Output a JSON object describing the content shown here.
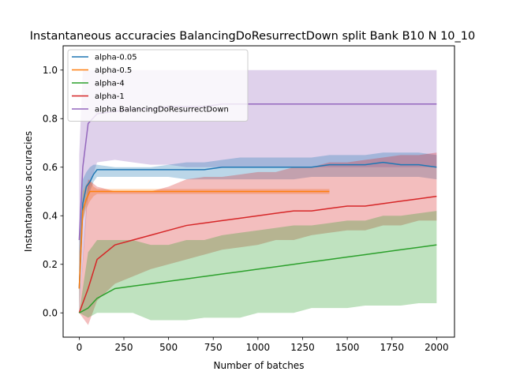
{
  "chart_data": {
    "type": "line",
    "title": "Instantaneous accuracies BalancingDoResurrectDown split Bank B10 N 10_10",
    "xlabel": "Number of batches",
    "ylabel": "Instantaneous accuracies",
    "xlim": [
      -90,
      2100
    ],
    "ylim": [
      -0.1,
      1.1
    ],
    "xticks": [
      0,
      250,
      500,
      750,
      1000,
      1250,
      1500,
      1750,
      2000
    ],
    "yticks": [
      0.0,
      0.2,
      0.4,
      0.6,
      0.8,
      1.0
    ],
    "grid": false,
    "legend_position": "top-left",
    "series": [
      {
        "name": "alpha BalancingDoResurrectDown",
        "color": "#9467bd",
        "x": [
          0,
          20,
          50,
          100,
          200,
          300,
          400,
          500,
          600,
          700,
          800,
          900,
          1000,
          1100,
          1200,
          1300,
          1400,
          1500,
          1600,
          1700,
          1800,
          1900,
          2000
        ],
        "values": [
          0.3,
          0.6,
          0.78,
          0.82,
          0.83,
          0.84,
          0.84,
          0.85,
          0.85,
          0.85,
          0.86,
          0.86,
          0.86,
          0.86,
          0.86,
          0.86,
          0.86,
          0.86,
          0.86,
          0.86,
          0.86,
          0.86,
          0.86
        ],
        "band_upper": [
          0.65,
          1.0,
          1.0,
          1.0,
          1.0,
          1.0,
          1.0,
          1.0,
          1.0,
          1.0,
          1.0,
          1.0,
          1.0,
          1.0,
          1.0,
          1.0,
          1.0,
          1.0,
          1.0,
          1.0,
          1.0,
          1.0,
          1.0
        ],
        "band_lower": [
          0.0,
          0.2,
          0.5,
          0.62,
          0.63,
          0.62,
          0.61,
          0.61,
          0.6,
          0.6,
          0.6,
          0.6,
          0.6,
          0.6,
          0.6,
          0.6,
          0.6,
          0.6,
          0.6,
          0.6,
          0.6,
          0.6,
          0.6
        ]
      },
      {
        "name": "alpha-0.05",
        "color": "#1f77b4",
        "x": [
          0,
          20,
          40,
          60,
          80,
          100,
          200,
          300,
          400,
          500,
          600,
          700,
          800,
          900,
          1000,
          1100,
          1200,
          1300,
          1400,
          1500,
          1600,
          1700,
          1800,
          1900,
          2000
        ],
        "values": [
          0.1,
          0.45,
          0.52,
          0.54,
          0.57,
          0.59,
          0.59,
          0.59,
          0.59,
          0.59,
          0.59,
          0.59,
          0.6,
          0.6,
          0.6,
          0.6,
          0.6,
          0.6,
          0.61,
          0.61,
          0.61,
          0.62,
          0.61,
          0.61,
          0.6
        ],
        "band_upper": [
          0.3,
          0.55,
          0.58,
          0.6,
          0.61,
          0.61,
          0.6,
          0.6,
          0.6,
          0.61,
          0.62,
          0.62,
          0.63,
          0.64,
          0.64,
          0.64,
          0.64,
          0.64,
          0.65,
          0.65,
          0.65,
          0.66,
          0.66,
          0.66,
          0.65
        ],
        "band_lower": [
          0.0,
          0.38,
          0.45,
          0.5,
          0.54,
          0.56,
          0.56,
          0.56,
          0.56,
          0.56,
          0.55,
          0.55,
          0.55,
          0.55,
          0.55,
          0.55,
          0.55,
          0.56,
          0.56,
          0.56,
          0.56,
          0.56,
          0.56,
          0.56,
          0.55
        ]
      },
      {
        "name": "alpha-0.5",
        "color": "#ff7f0e",
        "x": [
          0,
          20,
          40,
          60,
          80,
          100,
          200,
          300,
          400,
          500,
          600,
          700,
          800,
          900,
          1000,
          1100,
          1200,
          1300,
          1400
        ],
        "values": [
          0.1,
          0.42,
          0.47,
          0.5,
          0.5,
          0.5,
          0.5,
          0.5,
          0.5,
          0.5,
          0.5,
          0.5,
          0.5,
          0.5,
          0.5,
          0.5,
          0.5,
          0.5,
          0.5
        ],
        "band_upper": [
          0.25,
          0.5,
          0.53,
          0.55,
          0.52,
          0.51,
          0.51,
          0.51,
          0.51,
          0.51,
          0.51,
          0.51,
          0.51,
          0.51,
          0.51,
          0.51,
          0.51,
          0.51,
          0.51
        ],
        "band_lower": [
          0.0,
          0.38,
          0.43,
          0.46,
          0.48,
          0.49,
          0.49,
          0.49,
          0.49,
          0.49,
          0.49,
          0.49,
          0.49,
          0.49,
          0.49,
          0.49,
          0.49,
          0.49,
          0.49
        ]
      },
      {
        "name": "alpha-1",
        "color": "#d62728",
        "x": [
          0,
          50,
          100,
          200,
          300,
          400,
          500,
          600,
          700,
          800,
          900,
          1000,
          1100,
          1200,
          1300,
          1400,
          1500,
          1600,
          1700,
          1800,
          1900,
          2000
        ],
        "values": [
          0.0,
          0.1,
          0.22,
          0.28,
          0.3,
          0.32,
          0.34,
          0.36,
          0.37,
          0.38,
          0.39,
          0.4,
          0.41,
          0.42,
          0.42,
          0.43,
          0.44,
          0.44,
          0.45,
          0.46,
          0.47,
          0.48
        ],
        "band_upper": [
          0.0,
          0.55,
          0.52,
          0.5,
          0.5,
          0.5,
          0.52,
          0.55,
          0.56,
          0.56,
          0.57,
          0.58,
          0.58,
          0.6,
          0.6,
          0.62,
          0.62,
          0.63,
          0.64,
          0.65,
          0.65,
          0.66
        ],
        "band_lower": [
          0.0,
          -0.05,
          0.05,
          0.12,
          0.15,
          0.18,
          0.2,
          0.22,
          0.24,
          0.26,
          0.27,
          0.28,
          0.3,
          0.3,
          0.32,
          0.33,
          0.34,
          0.34,
          0.36,
          0.36,
          0.38,
          0.38
        ]
      },
      {
        "name": "alpha-4",
        "color": "#2ca02c",
        "x": [
          0,
          50,
          100,
          200,
          300,
          400,
          500,
          600,
          700,
          800,
          900,
          1000,
          1100,
          1200,
          1300,
          1400,
          1500,
          1600,
          1700,
          1800,
          1900,
          2000
        ],
        "values": [
          0.0,
          0.02,
          0.06,
          0.1,
          0.11,
          0.12,
          0.13,
          0.14,
          0.15,
          0.16,
          0.17,
          0.18,
          0.19,
          0.2,
          0.21,
          0.22,
          0.23,
          0.24,
          0.25,
          0.26,
          0.27,
          0.28
        ],
        "band_upper": [
          0.0,
          0.25,
          0.3,
          0.3,
          0.3,
          0.28,
          0.28,
          0.3,
          0.3,
          0.32,
          0.33,
          0.34,
          0.35,
          0.36,
          0.36,
          0.37,
          0.38,
          0.38,
          0.4,
          0.4,
          0.41,
          0.42
        ],
        "band_lower": [
          0.0,
          -0.02,
          0.0,
          0.0,
          0.0,
          -0.03,
          -0.03,
          -0.03,
          -0.02,
          -0.02,
          -0.02,
          0.0,
          0.0,
          0.0,
          0.02,
          0.02,
          0.02,
          0.03,
          0.03,
          0.03,
          0.04,
          0.04
        ]
      }
    ],
    "legend": [
      {
        "name": "alpha-0.05",
        "color": "#1f77b4"
      },
      {
        "name": "alpha-0.5",
        "color": "#ff7f0e"
      },
      {
        "name": "alpha-4",
        "color": "#2ca02c"
      },
      {
        "name": "alpha-1",
        "color": "#d62728"
      },
      {
        "name": "alpha BalancingDoResurrectDown",
        "color": "#9467bd"
      }
    ]
  }
}
